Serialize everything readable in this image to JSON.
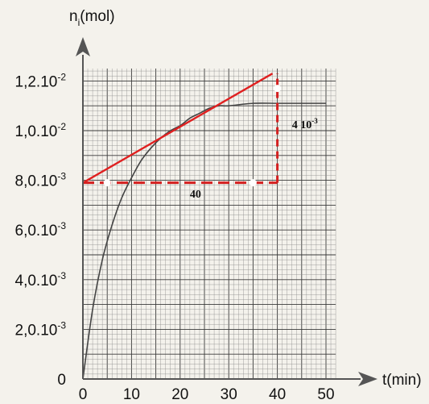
{
  "chart_data": {
    "type": "line",
    "ylabel_main": "n",
    "ylabel_sub": "i",
    "ylabel_unit": "(mol)",
    "xlabel": "t(min)",
    "xlim": [
      0,
      52
    ],
    "ylim": [
      0,
      0.0125
    ],
    "grid": true,
    "x_ticks": [
      {
        "value": 0,
        "label": "0"
      },
      {
        "value": 10,
        "label": "10"
      },
      {
        "value": 20,
        "label": "20"
      },
      {
        "value": 30,
        "label": "30"
      },
      {
        "value": 40,
        "label": "40"
      },
      {
        "value": 50,
        "label": "50"
      }
    ],
    "y_ticks": [
      {
        "value": 0,
        "base": "0",
        "exp": ""
      },
      {
        "value": 0.002,
        "base": "2,0.10",
        "exp": "-3"
      },
      {
        "value": 0.004,
        "base": "4,0.10",
        "exp": "-3"
      },
      {
        "value": 0.006,
        "base": "6,0.10",
        "exp": "-3"
      },
      {
        "value": 0.008,
        "base": "8,0.10",
        "exp": "-3"
      },
      {
        "value": 0.01,
        "base": "1,0.10",
        "exp": "-2"
      },
      {
        "value": 0.012,
        "base": "1,2.10",
        "exp": "-2"
      }
    ],
    "series": [
      {
        "color": "#444444",
        "x": [
          0,
          2,
          4,
          6,
          8,
          10,
          12,
          14,
          16,
          18,
          20,
          22,
          24,
          26,
          28,
          30,
          35,
          40,
          45,
          50
        ],
        "y": [
          0,
          0.0028,
          0.0048,
          0.0062,
          0.0073,
          0.0081,
          0.0088,
          0.0093,
          0.0097,
          0.01,
          0.0102,
          0.0105,
          0.0107,
          0.0109,
          0.011,
          0.011,
          0.0111,
          0.0111,
          0.0111,
          0.0111
        ]
      }
    ],
    "tangent": {
      "color": "#e02020",
      "x": [
        0,
        39
      ],
      "y": [
        0.0079,
        0.0123
      ]
    },
    "construction": {
      "color": "#d42020",
      "horizontal": {
        "x": [
          0,
          40
        ],
        "y": 0.0079
      },
      "vertical": {
        "x": 40,
        "y": [
          0.0079,
          0.0123
        ]
      }
    },
    "annotations": [
      {
        "text": "40",
        "x": 22,
        "y": 0.0073
      },
      {
        "text": "4 10",
        "sup": "-3",
        "x": 43,
        "y": 0.0101
      }
    ]
  },
  "colors": {
    "paper": "#f4f2ec",
    "grid_major": "#3a3a3a",
    "grid_minor": "#8a8a8a",
    "axis": "#555555"
  }
}
